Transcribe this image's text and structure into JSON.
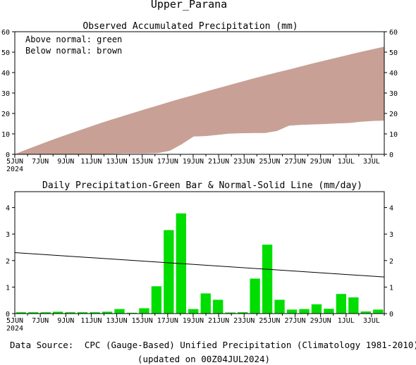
{
  "page_title": "Upper_Parana",
  "footer": {
    "source_label": "Data Source:",
    "source_text": "CPC (Gauge-Based) Unified Precipitation (Climatology 1981-2010)",
    "updated_text": "(updated on 00Z04JUL2024)",
    "source_label_color": "#e03030"
  },
  "chart_data": [
    {
      "type": "area",
      "title": "Observed Accumulated Precipitation (mm)",
      "legend_lines": [
        "Above normal: green",
        "Below normal: brown"
      ],
      "legend_placement": "top-left",
      "x_ticks": [
        "5JUN",
        "7JUN",
        "9JUN",
        "11JUN",
        "13JUN",
        "15JUN",
        "17JUN",
        "19JUN",
        "21JUN",
        "23JUN",
        "25JUN",
        "27JUN",
        "29JUN",
        "1JUL",
        "3JUL"
      ],
      "x_year_label": "2024",
      "ylim": [
        0,
        60
      ],
      "y_ticks": [
        "0",
        "10",
        "20",
        "30",
        "40",
        "50",
        "60"
      ],
      "colors": {
        "below_normal": "#c8a096",
        "above_normal": "#00cc00"
      },
      "series": [
        {
          "name": "normal",
          "values": [
            2.3,
            4.5,
            6.7,
            8.8,
            10.8,
            12.8,
            14.8,
            16.7,
            18.5,
            20.3,
            22.1,
            23.8,
            25.6,
            27.3,
            28.9,
            30.6,
            32.2,
            33.8,
            35.4,
            37.0,
            38.5,
            40.0,
            41.4,
            42.9,
            44.4,
            45.8,
            47.2,
            48.6,
            50.0,
            51.3,
            52.6
          ]
        },
        {
          "name": "observed",
          "values": [
            0.1,
            0.1,
            0.1,
            0.2,
            0.2,
            0.3,
            0.3,
            0.3,
            0.5,
            0.5,
            0.5,
            0.7,
            1.8,
            5.0,
            8.8,
            9.0,
            9.6,
            10.2,
            10.4,
            10.5,
            10.5,
            11.5,
            14.1,
            14.5,
            14.7,
            14.9,
            15.2,
            15.4,
            16.0,
            16.4,
            16.6
          ]
        }
      ]
    },
    {
      "type": "bar",
      "title": "Daily Precipitation-Green Bar & Normal-Solid Line (mm/day)",
      "x_ticks": [
        "5JUN",
        "7JUN",
        "9JUN",
        "11JUN",
        "13JUN",
        "15JUN",
        "17JUN",
        "19JUN",
        "21JUN",
        "23JUN",
        "25JUN",
        "27JUN",
        "29JUN",
        "1JUL",
        "3JUL"
      ],
      "x_year_label": "2024",
      "ylim": [
        0,
        4.6
      ],
      "y_ticks": [
        "0",
        "1",
        "2",
        "3",
        "4"
      ],
      "colors": {
        "bars": "#00dd00",
        "normal_line": "#000000"
      },
      "series": [
        {
          "name": "daily",
          "values": [
            0.05,
            0.05,
            0.05,
            0.07,
            0.05,
            0.05,
            0.05,
            0.07,
            0.17,
            0.03,
            0.2,
            1.03,
            3.15,
            3.78,
            0.17,
            0.76,
            0.52,
            0.04,
            0.05,
            1.32,
            2.6,
            0.52,
            0.15,
            0.17,
            0.35,
            0.18,
            0.74,
            0.61,
            0.08,
            0.15
          ]
        },
        {
          "name": "normal",
          "values": [
            2.3,
            1.38
          ]
        }
      ]
    }
  ]
}
